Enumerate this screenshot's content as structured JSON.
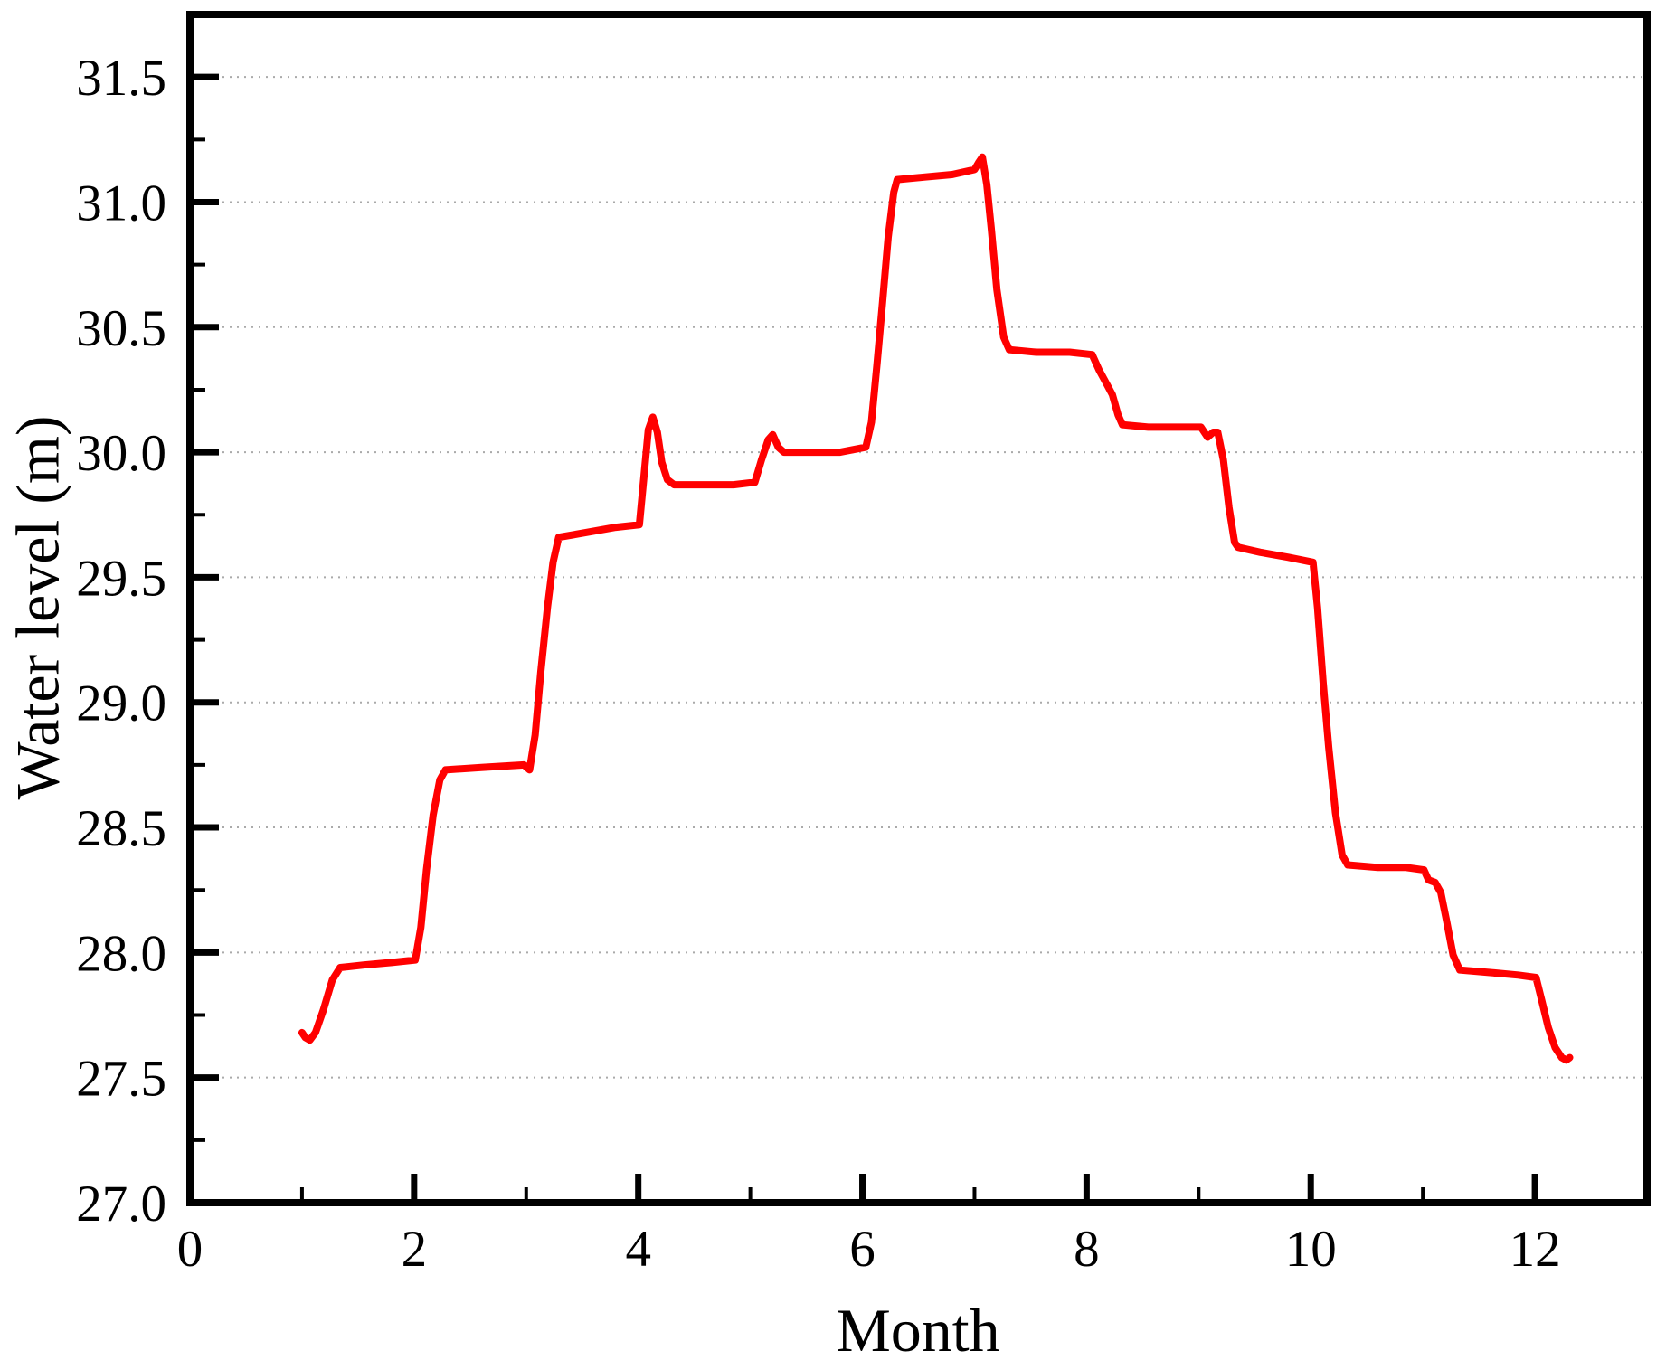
{
  "figure": {
    "background": "#ffffff",
    "axis_color": "#000000",
    "grid_color": "#aaaaaa",
    "line_color": "#ff0000"
  },
  "chart_data": {
    "type": "line",
    "title": "",
    "xlabel": "Month",
    "ylabel": "Water level (m)",
    "xlim": [
      0,
      13
    ],
    "ylim": [
      27.0,
      31.75
    ],
    "grid": "dotted horizontal at y major ticks",
    "legend_position": "none",
    "x_tick_labels": [
      "0",
      "2",
      "4",
      "6",
      "8",
      "10",
      "12"
    ],
    "x_major_ticks": [
      0,
      2,
      4,
      6,
      8,
      10,
      12
    ],
    "x_minor_ticks": [
      1,
      3,
      5,
      7,
      9,
      11
    ],
    "y_tick_labels": [
      "27.0",
      "27.5",
      "28.0",
      "28.5",
      "29.0",
      "29.5",
      "30.0",
      "30.5",
      "31.0",
      "31.5"
    ],
    "y_major_ticks": [
      27.0,
      27.5,
      28.0,
      28.5,
      29.0,
      29.5,
      30.0,
      30.5,
      31.0,
      31.5
    ],
    "y_minor_ticks": [
      27.25,
      27.75,
      28.25,
      28.75,
      29.25,
      29.75,
      30.25,
      30.75,
      31.25
    ],
    "gridline_y_values": [
      27.5,
      28.0,
      28.5,
      29.0,
      29.5,
      30.0,
      30.5,
      31.0,
      31.5
    ],
    "series": [
      {
        "name": "Water level",
        "color": "#ff0000",
        "points": [
          [
            1.0,
            27.68
          ],
          [
            1.03,
            27.66
          ],
          [
            1.07,
            27.65
          ],
          [
            1.12,
            27.68
          ],
          [
            1.19,
            27.77
          ],
          [
            1.27,
            27.89
          ],
          [
            1.34,
            27.94
          ],
          [
            1.55,
            27.95
          ],
          [
            1.8,
            27.96
          ],
          [
            2.01,
            27.97
          ],
          [
            2.06,
            28.1
          ],
          [
            2.11,
            28.33
          ],
          [
            2.17,
            28.55
          ],
          [
            2.23,
            28.69
          ],
          [
            2.28,
            28.73
          ],
          [
            2.6,
            28.74
          ],
          [
            2.98,
            28.75
          ],
          [
            3.03,
            28.73
          ],
          [
            3.08,
            28.87
          ],
          [
            3.13,
            29.12
          ],
          [
            3.19,
            29.38
          ],
          [
            3.24,
            29.56
          ],
          [
            3.29,
            29.66
          ],
          [
            3.55,
            29.68
          ],
          [
            3.8,
            29.7
          ],
          [
            4.01,
            29.71
          ],
          [
            4.05,
            29.9
          ],
          [
            4.09,
            30.09
          ],
          [
            4.13,
            30.14
          ],
          [
            4.17,
            30.08
          ],
          [
            4.21,
            29.96
          ],
          [
            4.26,
            29.89
          ],
          [
            4.32,
            29.87
          ],
          [
            4.6,
            29.87
          ],
          [
            4.85,
            29.87
          ],
          [
            5.04,
            29.88
          ],
          [
            5.1,
            29.97
          ],
          [
            5.16,
            30.05
          ],
          [
            5.2,
            30.07
          ],
          [
            5.25,
            30.02
          ],
          [
            5.3,
            30.0
          ],
          [
            5.5,
            30.0
          ],
          [
            5.8,
            30.0
          ],
          [
            6.03,
            30.02
          ],
          [
            6.08,
            30.12
          ],
          [
            6.13,
            30.35
          ],
          [
            6.18,
            30.6
          ],
          [
            6.23,
            30.86
          ],
          [
            6.28,
            31.04
          ],
          [
            6.31,
            31.09
          ],
          [
            6.55,
            31.1
          ],
          [
            6.8,
            31.11
          ],
          [
            7.0,
            31.13
          ],
          [
            7.04,
            31.16
          ],
          [
            7.07,
            31.18
          ],
          [
            7.11,
            31.07
          ],
          [
            7.15,
            30.89
          ],
          [
            7.2,
            30.65
          ],
          [
            7.26,
            30.46
          ],
          [
            7.31,
            30.41
          ],
          [
            7.55,
            30.4
          ],
          [
            7.85,
            30.4
          ],
          [
            8.05,
            30.39
          ],
          [
            8.11,
            30.33
          ],
          [
            8.17,
            30.28
          ],
          [
            8.23,
            30.23
          ],
          [
            8.28,
            30.15
          ],
          [
            8.32,
            30.11
          ],
          [
            8.55,
            30.1
          ],
          [
            8.85,
            30.1
          ],
          [
            9.02,
            30.1
          ],
          [
            9.08,
            30.06
          ],
          [
            9.13,
            30.08
          ],
          [
            9.17,
            30.08
          ],
          [
            9.22,
            29.97
          ],
          [
            9.27,
            29.78
          ],
          [
            9.32,
            29.64
          ],
          [
            9.35,
            29.62
          ],
          [
            9.55,
            29.6
          ],
          [
            9.8,
            29.58
          ],
          [
            10.02,
            29.56
          ],
          [
            10.06,
            29.38
          ],
          [
            10.11,
            29.08
          ],
          [
            10.16,
            28.82
          ],
          [
            10.22,
            28.56
          ],
          [
            10.28,
            28.39
          ],
          [
            10.33,
            28.35
          ],
          [
            10.6,
            28.34
          ],
          [
            10.85,
            28.34
          ],
          [
            11.01,
            28.33
          ],
          [
            11.05,
            28.29
          ],
          [
            11.11,
            28.28
          ],
          [
            11.16,
            28.24
          ],
          [
            11.21,
            28.13
          ],
          [
            11.27,
            27.99
          ],
          [
            11.33,
            27.93
          ],
          [
            11.6,
            27.92
          ],
          [
            11.85,
            27.91
          ],
          [
            12.01,
            27.9
          ],
          [
            12.06,
            27.81
          ],
          [
            12.12,
            27.7
          ],
          [
            12.18,
            27.62
          ],
          [
            12.24,
            27.58
          ],
          [
            12.28,
            27.57
          ],
          [
            12.31,
            27.58
          ]
        ]
      }
    ]
  }
}
